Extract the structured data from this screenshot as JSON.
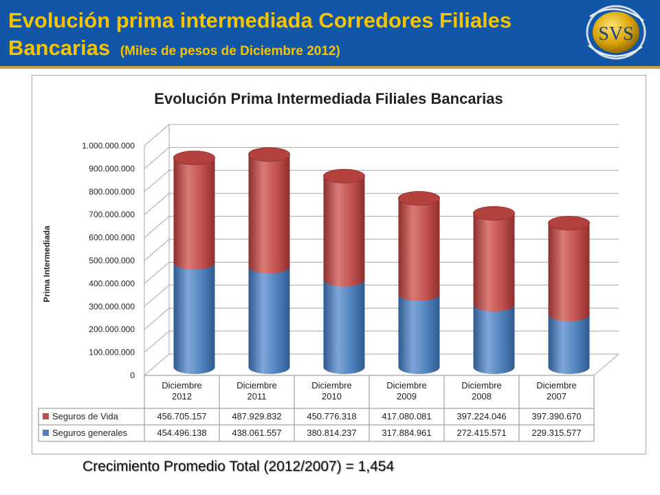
{
  "header": {
    "title_main": "Evolución prima intermediada Corredores Filiales",
    "title_line2": "Bancarias",
    "title_sub": "(Miles de pesos de Diciembre 2012)",
    "logo_text": "SVS"
  },
  "colors": {
    "header_bg": "#1256a8",
    "title_text": "#f5c400",
    "seguros_vida": "#c0504d",
    "seguros_generales": "#4f81bd"
  },
  "chart_data": {
    "type": "bar",
    "stacked": true,
    "style": "3d-cylinder",
    "title": "Evolución Prima Intermediada Filiales Bancarias",
    "ylabel": "Prima Intermediada",
    "xlabel": "",
    "ylim": [
      0,
      1000000000
    ],
    "yticks": [
      "0",
      "100.000.000",
      "200.000.000",
      "300.000.000",
      "400.000.000",
      "500.000.000",
      "600.000.000",
      "700.000.000",
      "800.000.000",
      "900.000.000",
      "1.000.000.000"
    ],
    "categories": [
      [
        "Diciembre",
        "2012"
      ],
      [
        "Diciembre",
        "2011"
      ],
      [
        "Diciembre",
        "2010"
      ],
      [
        "Diciembre",
        "2009"
      ],
      [
        "Diciembre",
        "2008"
      ],
      [
        "Diciembre",
        "2007"
      ]
    ],
    "series": [
      {
        "name": "Seguros generales",
        "values": [
          454496138,
          438061557,
          380814237,
          317884961,
          272415571,
          229315577
        ],
        "labels": [
          "454.496.138",
          "438.061.557",
          "380.814.237",
          "317.884.961",
          "272.415.571",
          "229.315.577"
        ]
      },
      {
        "name": "Seguros de Vida",
        "values": [
          456705157,
          487929832,
          450776318,
          417080081,
          397224046,
          397390670
        ],
        "labels": [
          "456.705.157",
          "487.929.832",
          "450.776.318",
          "417.080.081",
          "397.224.046",
          "397.390.670"
        ]
      }
    ],
    "grid": true,
    "legend": "data-table-below"
  },
  "footer": {
    "note": "Crecimiento Promedio Total (2012/2007) = 1,454"
  }
}
